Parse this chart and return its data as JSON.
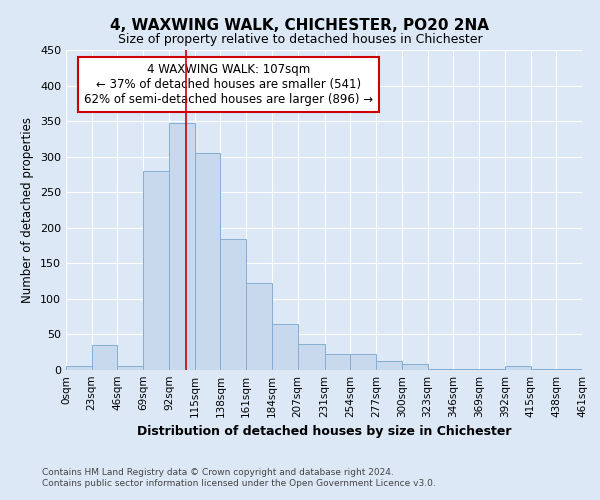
{
  "title": "4, WAXWING WALK, CHICHESTER, PO20 2NA",
  "subtitle": "Size of property relative to detached houses in Chichester",
  "xlabel": "Distribution of detached houses by size in Chichester",
  "ylabel": "Number of detached properties",
  "bar_color": "#c8d9ee",
  "bar_edge_color": "#85aed4",
  "bg_color": "#dce8f5",
  "grid_color": "#ffffff",
  "bin_edges": [
    0,
    23,
    46,
    69,
    92,
    115,
    138,
    161,
    184,
    207,
    231,
    254,
    277,
    300,
    323,
    346,
    369,
    392,
    415,
    438,
    461
  ],
  "bar_heights": [
    5,
    35,
    5,
    280,
    347,
    305,
    184,
    122,
    65,
    37,
    22,
    22,
    12,
    8,
    2,
    2,
    2,
    5,
    2,
    2
  ],
  "tick_labels": [
    "0sqm",
    "23sqm",
    "46sqm",
    "69sqm",
    "92sqm",
    "115sqm",
    "138sqm",
    "161sqm",
    "184sqm",
    "207sqm",
    "231sqm",
    "254sqm",
    "277sqm",
    "300sqm",
    "323sqm",
    "346sqm",
    "369sqm",
    "392sqm",
    "415sqm",
    "438sqm",
    "461sqm"
  ],
  "ylim": [
    0,
    450
  ],
  "yticks": [
    0,
    50,
    100,
    150,
    200,
    250,
    300,
    350,
    400,
    450
  ],
  "red_line_x": 107,
  "annotation_title": "4 WAXWING WALK: 107sqm",
  "annotation_line1": "← 37% of detached houses are smaller (541)",
  "annotation_line2": "62% of semi-detached houses are larger (896) →",
  "annotation_box_color": "#ffffff",
  "annotation_box_edge": "#cc0000",
  "footer_line1": "Contains HM Land Registry data © Crown copyright and database right 2024.",
  "footer_line2": "Contains public sector information licensed under the Open Government Licence v3.0."
}
